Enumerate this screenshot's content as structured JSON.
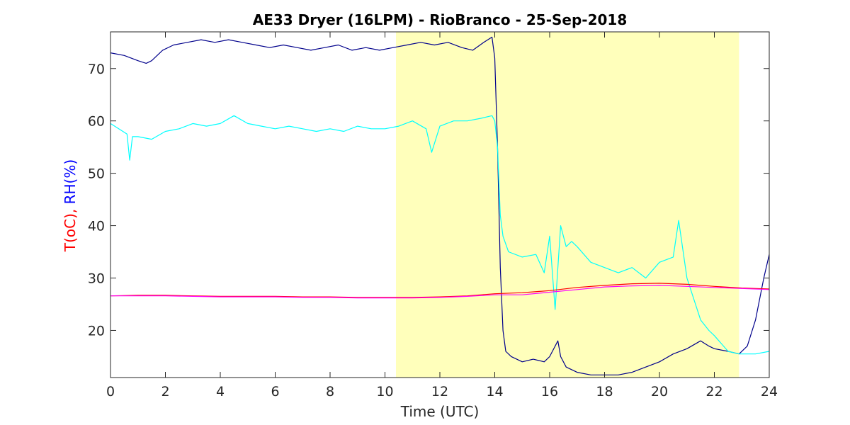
{
  "chart_data": {
    "type": "line",
    "title": "AE33 Dryer (16LPM)  - RioBranco - 25-Sep-2018",
    "xlabel": "Time (UTC)",
    "ylabel_parts": [
      {
        "text": "T(oC), ",
        "color": "#ff0000"
      },
      {
        "text": "RH(%)",
        "color": "#0000ff"
      }
    ],
    "xlim": [
      0,
      24
    ],
    "ylim": [
      11,
      77
    ],
    "xticks": [
      0,
      2,
      4,
      6,
      8,
      10,
      12,
      14,
      16,
      18,
      20,
      22,
      24
    ],
    "yticks": [
      20,
      30,
      40,
      50,
      60,
      70
    ],
    "grid": false,
    "highlight_band": {
      "x_start": 10.4,
      "x_end": 22.9,
      "color": "#ffffbb"
    },
    "series": [
      {
        "color": "#00008b",
        "x": [
          0,
          0.5,
          1,
          1.3,
          1.5,
          1.9,
          2.3,
          2.8,
          3.3,
          3.8,
          4.3,
          4.8,
          5.3,
          5.8,
          6.3,
          6.8,
          7.3,
          7.8,
          8.3,
          8.8,
          9.3,
          9.8,
          10.3,
          10.8,
          11.3,
          11.8,
          12.3,
          12.8,
          13.2,
          13.6,
          13.9,
          14.0,
          14.1,
          14.2,
          14.3,
          14.4,
          14.6,
          14.8,
          15.0,
          15.4,
          15.8,
          16.0,
          16.3,
          16.4,
          16.6,
          17.0,
          17.5,
          18.0,
          18.5,
          19.0,
          19.5,
          20.0,
          20.5,
          21.0,
          21.5,
          21.8,
          22.0,
          22.5,
          22.9,
          23.2,
          23.5,
          23.8,
          24.0
        ],
        "y": [
          73,
          72.5,
          71.5,
          71,
          71.5,
          73.5,
          74.5,
          75,
          75.5,
          75,
          75.5,
          75,
          74.5,
          74,
          74.5,
          74,
          73.5,
          74,
          74.5,
          73.5,
          74,
          73.5,
          74,
          74.5,
          75,
          74.5,
          75,
          74,
          73.5,
          75,
          76,
          72,
          55,
          32,
          20,
          16,
          15,
          14.5,
          14,
          14.5,
          14,
          15,
          18,
          15,
          13,
          12,
          11.5,
          11.5,
          11.5,
          12,
          13,
          14,
          15.5,
          16.5,
          18,
          17,
          16.5,
          16,
          15.5,
          17,
          22,
          30,
          34.5
        ]
      },
      {
        "color": "#00ffff",
        "x": [
          0,
          0.3,
          0.6,
          0.7,
          0.8,
          1.0,
          1.5,
          2.0,
          2.5,
          3.0,
          3.5,
          4.0,
          4.5,
          5.0,
          5.5,
          6.0,
          6.5,
          7.0,
          7.5,
          8.0,
          8.5,
          9.0,
          9.5,
          10.0,
          10.5,
          11.0,
          11.5,
          11.7,
          12.0,
          12.5,
          13.0,
          13.5,
          13.9,
          14.0,
          14.1,
          14.2,
          14.3,
          14.5,
          15.0,
          15.5,
          15.8,
          16.0,
          16.2,
          16.4,
          16.6,
          16.8,
          17.0,
          17.5,
          18.0,
          18.5,
          19.0,
          19.5,
          20.0,
          20.5,
          20.7,
          21.0,
          21.5,
          21.8,
          22.0,
          22.5,
          22.9,
          23.5,
          24.0
        ],
        "y": [
          59.5,
          58.5,
          57.5,
          52.5,
          57,
          57,
          56.5,
          58,
          58.5,
          59.5,
          59,
          59.5,
          61,
          59.5,
          59,
          58.5,
          59,
          58.5,
          58,
          58.5,
          58,
          59,
          58.5,
          58.5,
          59,
          60,
          58.5,
          54,
          59,
          60,
          60,
          60.5,
          61,
          60,
          55,
          42,
          38,
          35,
          34,
          34.5,
          31,
          38,
          24,
          40,
          36,
          37,
          36,
          33,
          32,
          31,
          32,
          30,
          33,
          34,
          41,
          30,
          22,
          20,
          19,
          16,
          15.5,
          15.5,
          16
        ]
      },
      {
        "color": "#ff0000",
        "x": [
          0,
          1,
          2,
          3,
          4,
          5,
          6,
          7,
          8,
          9,
          10,
          11,
          12,
          13,
          14,
          15,
          16,
          17,
          18,
          19,
          20,
          21,
          22,
          23,
          24
        ],
        "y": [
          26.6,
          26.7,
          26.7,
          26.6,
          26.5,
          26.5,
          26.5,
          26.4,
          26.4,
          26.3,
          26.3,
          26.3,
          26.4,
          26.6,
          27.0,
          27.2,
          27.6,
          28.2,
          28.6,
          28.9,
          29.0,
          28.8,
          28.4,
          28.1,
          27.9
        ]
      },
      {
        "color": "#ff00ff",
        "x": [
          0,
          1,
          2,
          3,
          4,
          5,
          6,
          7,
          8,
          9,
          10,
          11,
          12,
          13,
          14,
          15,
          16,
          17,
          18,
          19,
          20,
          21,
          22,
          23,
          24
        ],
        "y": [
          26.6,
          26.6,
          26.6,
          26.5,
          26.4,
          26.4,
          26.4,
          26.3,
          26.3,
          26.2,
          26.2,
          26.2,
          26.3,
          26.5,
          26.8,
          26.8,
          27.3,
          27.8,
          28.3,
          28.5,
          28.6,
          28.4,
          28.2,
          28.0,
          27.8
        ]
      }
    ]
  }
}
